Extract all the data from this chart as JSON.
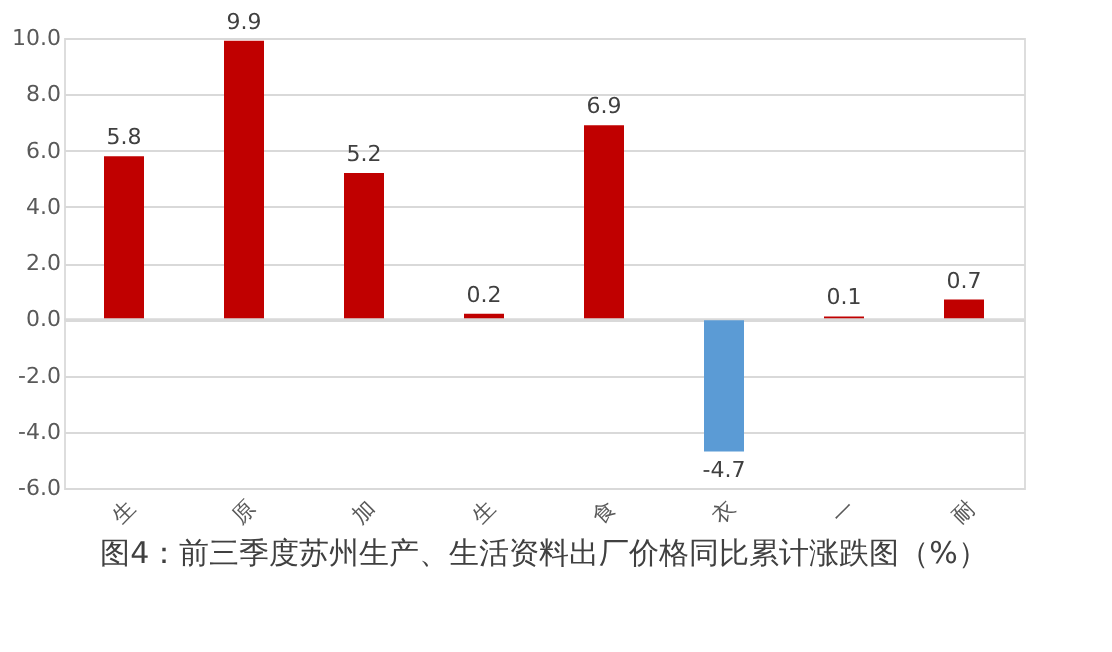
{
  "chart_data": {
    "type": "bar",
    "title": "图4：前三季度苏州生产、生活资料出厂价格同比累计涨跌图（%）",
    "categories": [
      "生",
      "原",
      "加",
      "生",
      "食",
      "衣",
      "一",
      "耐"
    ],
    "values": [
      5.8,
      9.9,
      5.2,
      0.2,
      6.9,
      -4.7,
      0.1,
      0.7
    ],
    "colors": [
      "#c00000",
      "#c00000",
      "#c00000",
      "#c00000",
      "#c00000",
      "#5b9bd5",
      "#c00000",
      "#c00000"
    ],
    "ylim": [
      -6,
      10
    ],
    "yticks": [
      {
        "value": -6,
        "label": "-6.0"
      },
      {
        "value": -4,
        "label": "-4.0"
      },
      {
        "value": -2,
        "label": "-2.0"
      },
      {
        "value": 0,
        "label": "0.0"
      },
      {
        "value": 2,
        "label": "2.0"
      },
      {
        "value": 4,
        "label": "4.0"
      },
      {
        "value": 6,
        "label": "6.0"
      },
      {
        "value": 8,
        "label": "8.0"
      },
      {
        "value": 10,
        "label": "10.0"
      }
    ],
    "grid": "y",
    "data_labels": true
  }
}
